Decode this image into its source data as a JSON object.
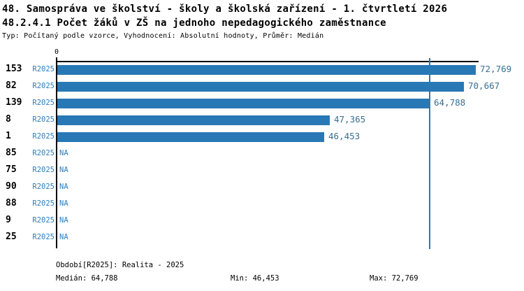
{
  "header": {
    "title": "48. Samospráva ve školství - školy a školská zařízení - 1. čtvrtletí 2026",
    "subtitle": "48.2.4.1 Počet žáků v ZŠ na jednoho nepedagogického zaměstnance",
    "meta": "Typ: Počítaný podle vzorce, Vyhodnocení: Absolutní hodnoty, Průměr: Medián"
  },
  "chart_data": {
    "type": "bar",
    "orientation": "horizontal",
    "title": "48.2.4.1 Počet žáků v ZŠ na jednoho nepedagogického zaměstnance",
    "categories": [
      "153",
      "82",
      "139",
      "8",
      "1",
      "85",
      "75",
      "90",
      "88",
      "9",
      "25"
    ],
    "series": [
      {
        "name": "R2025",
        "values": [
          72.769,
          70.667,
          64.788,
          47.365,
          46.453,
          null,
          null,
          null,
          null,
          null,
          null
        ]
      }
    ],
    "value_labels": [
      "72,769",
      "70,667",
      "64,788",
      "47,365",
      "46,453",
      "NA",
      "NA",
      "NA",
      "NA",
      "NA",
      "NA"
    ],
    "period_label": "R2025",
    "na_label": "NA",
    "zero_tick_label": "0",
    "xlim": [
      0,
      73.25
    ],
    "median_value": 64.788,
    "grid": false,
    "legend_position": "none",
    "colors": {
      "bar": "#2878b5",
      "median_line": "#2878b5",
      "period_text": "#2d7dbb",
      "value_text": "#3a6e91",
      "na_text": "#2d7dbb",
      "axis": "#000000",
      "count_text": "#000000"
    }
  },
  "footer": {
    "period_line": "Období[R2025]: Realita - 2025",
    "median": "Medián: 64,788",
    "min": "Min: 46,453",
    "max": "Max: 72,769"
  }
}
